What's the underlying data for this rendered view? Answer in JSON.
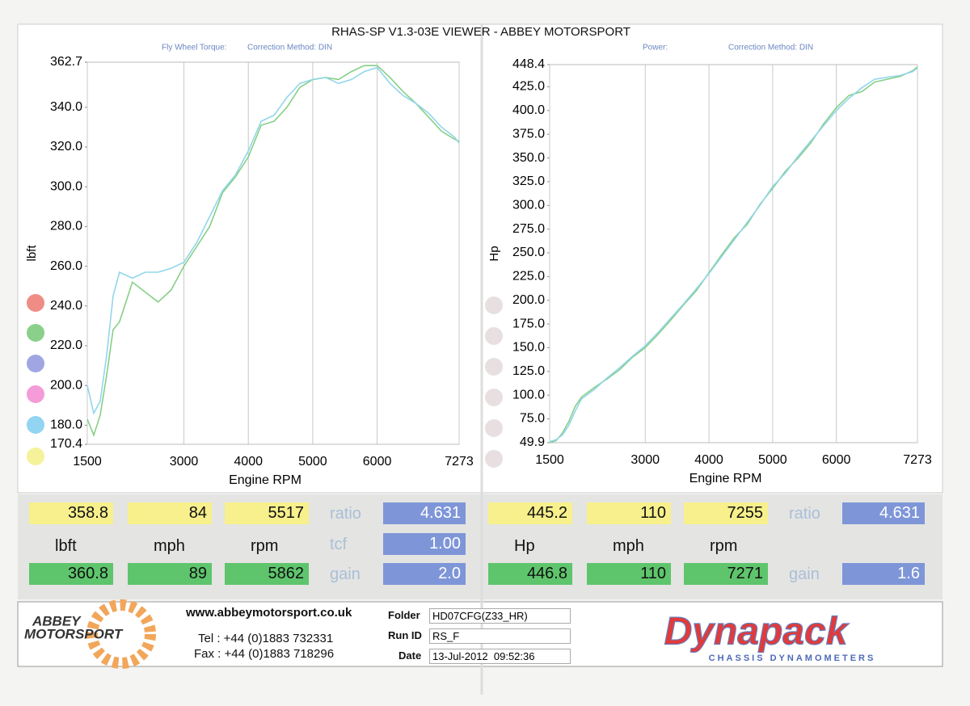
{
  "header": {
    "title": "RHAS-SP V1.3-03E VIEWER - ABBEY MOTORSPORT"
  },
  "chart_data": [
    {
      "type": "line",
      "title": "Fly Wheel Torque:",
      "subtitle": "Correction Method: DIN",
      "xlabel": "Engine RPM",
      "ylabel": "lbft",
      "x": [
        1500,
        1600,
        1700,
        1800,
        1900,
        2000,
        2200,
        2400,
        2600,
        2800,
        3000,
        3200,
        3400,
        3600,
        3800,
        4000,
        4200,
        4400,
        4600,
        4800,
        5000,
        5200,
        5400,
        5600,
        5800,
        6000,
        6200,
        6400,
        6600,
        6800,
        7000,
        7200,
        7273
      ],
      "xlim": [
        1500,
        7273
      ],
      "xticks": [
        1500,
        3000,
        4000,
        5000,
        6000,
        7273
      ],
      "ylim": [
        170.4,
        362.7
      ],
      "yticks": [
        170.4,
        {
          "value": 180,
          "label": "180.0"
        },
        {
          "value": 200,
          "label": "200.0"
        },
        {
          "value": 220,
          "label": "220.0"
        },
        {
          "value": 240,
          "label": "240.0"
        },
        {
          "value": 260,
          "label": "260.0"
        },
        {
          "value": 280,
          "label": "280.0"
        },
        {
          "value": 300,
          "label": "300.0"
        },
        {
          "value": 320,
          "label": "320.0"
        },
        {
          "value": 340,
          "label": "340.0"
        },
        362.7
      ],
      "grid": "x",
      "series": [
        {
          "color": "#86cf86",
          "values": [
            183,
            175,
            185,
            205,
            228,
            232,
            252,
            247,
            242,
            248,
            260,
            270,
            280,
            297,
            305,
            315,
            331,
            333,
            340,
            350,
            354,
            355,
            354,
            358,
            361,
            361,
            355,
            348,
            342,
            335,
            328,
            324,
            323
          ]
        },
        {
          "color": "#92d6ea",
          "values": [
            200,
            186,
            192,
            215,
            245,
            257,
            254,
            257,
            257,
            259,
            262,
            272,
            285,
            298,
            306,
            318,
            333,
            336,
            345,
            352,
            354,
            355,
            352,
            354,
            358,
            360,
            352,
            346,
            342,
            337,
            330,
            325,
            322
          ]
        }
      ]
    },
    {
      "type": "line",
      "title": "Power:",
      "subtitle": "Correction Method: DIN",
      "xlabel": "Engine RPM",
      "ylabel": "Hp",
      "x": [
        1500,
        1600,
        1700,
        1800,
        1900,
        2000,
        2200,
        2400,
        2600,
        2800,
        3000,
        3200,
        3400,
        3600,
        3800,
        4000,
        4200,
        4400,
        4600,
        4800,
        5000,
        5200,
        5400,
        5600,
        5800,
        6000,
        6200,
        6400,
        6600,
        6800,
        7000,
        7200,
        7273
      ],
      "xlim": [
        1500,
        7273
      ],
      "xticks": [
        1500,
        3000,
        4000,
        5000,
        6000,
        7273
      ],
      "ylim": [
        49.9,
        448.4
      ],
      "yticks": [
        49.9,
        {
          "value": 75,
          "label": "75.0"
        },
        {
          "value": 100,
          "label": "100.0"
        },
        {
          "value": 125,
          "label": "125.0"
        },
        {
          "value": 150,
          "label": "150.0"
        },
        {
          "value": 175,
          "label": "175.0"
        },
        {
          "value": 200,
          "label": "200.0"
        },
        {
          "value": 225,
          "label": "225.0"
        },
        {
          "value": 250,
          "label": "250.0"
        },
        {
          "value": 275,
          "label": "275.0"
        },
        {
          "value": 300,
          "label": "300.0"
        },
        {
          "value": 325,
          "label": "325.0"
        },
        {
          "value": 350,
          "label": "350.0"
        },
        {
          "value": 375,
          "label": "375.0"
        },
        {
          "value": 400,
          "label": "400.0"
        },
        {
          "value": 425,
          "label": "425.0"
        },
        448.4
      ],
      "grid": "x",
      "series": [
        {
          "color": "#86cf86",
          "values": [
            50,
            52,
            60,
            72,
            88,
            98,
            108,
            117,
            127,
            140,
            150,
            164,
            179,
            195,
            210,
            229,
            248,
            266,
            280,
            301,
            318,
            336,
            350,
            366,
            386,
            403,
            416,
            420,
            430,
            433,
            436,
            442,
            446
          ]
        },
        {
          "color": "#92d6ea",
          "values": [
            51,
            53,
            58,
            68,
            83,
            96,
            106,
            118,
            129,
            141,
            152,
            166,
            181,
            196,
            212,
            228,
            246,
            264,
            282,
            300,
            320,
            334,
            352,
            368,
            384,
            400,
            413,
            424,
            433,
            435,
            437,
            441,
            445
          ]
        }
      ]
    }
  ],
  "readings": [
    {
      "top": [
        "358.8",
        "84",
        "5517"
      ],
      "units": [
        "lbft",
        "mph",
        "rpm"
      ],
      "bottom": [
        "360.8",
        "89",
        "5862"
      ],
      "params": [
        {
          "label": "ratio",
          "value": "4.631"
        },
        {
          "label": "tcf",
          "value": "1.00"
        },
        {
          "label": "gain",
          "value": "2.0"
        }
      ]
    },
    {
      "top": [
        "445.2",
        "110",
        "7255"
      ],
      "units": [
        "Hp",
        "mph",
        "rpm"
      ],
      "bottom": [
        "446.8",
        "110",
        "7271"
      ],
      "params": [
        {
          "label": "ratio",
          "value": "4.631"
        },
        {
          "label": "gain",
          "value": "1.6"
        }
      ]
    }
  ],
  "footer": {
    "logo": [
      "ABBEY",
      "MOTORSPORT"
    ],
    "website": "www.abbeymotorsport.co.uk",
    "tel": "Tel : +44 (0)1883 732331",
    "fax": "Fax : +44 (0)1883 718296",
    "fields": [
      {
        "label": "Folder",
        "value": "HD07CFG(Z33_HR)"
      },
      {
        "label": "Run ID",
        "value": "RS_F"
      },
      {
        "label": "Date",
        "value": "13-Jul-2012  09:52:36"
      }
    ],
    "brand": "Dynapack",
    "brand_sub": "CHASSIS DYNAMOMETERS"
  }
}
